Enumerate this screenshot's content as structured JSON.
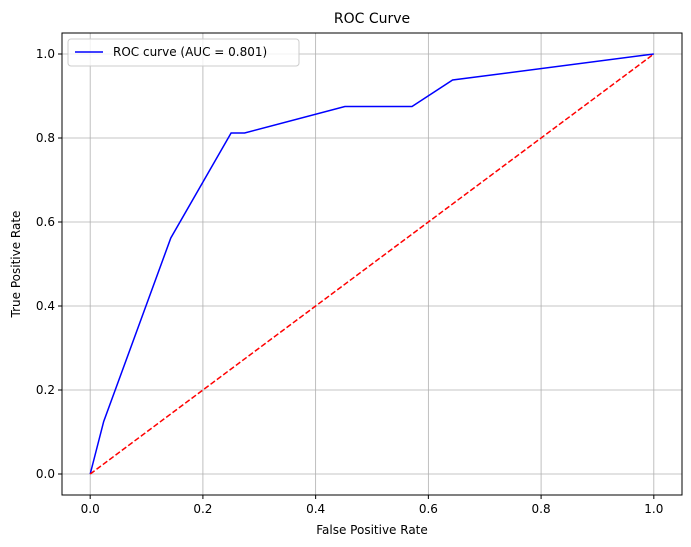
{
  "chart_data": {
    "type": "line",
    "title": "ROC Curve",
    "xlabel": "False Positive Rate",
    "ylabel": "True Positive Rate",
    "xlim": [
      -0.05,
      1.05
    ],
    "ylim": [
      -0.05,
      1.05
    ],
    "grid": true,
    "legend_position": "upper-left",
    "x_ticks": [
      "0.0",
      "0.2",
      "0.4",
      "0.6",
      "0.8",
      "1.0"
    ],
    "y_ticks": [
      "0.0",
      "0.2",
      "0.4",
      "0.6",
      "0.8",
      "1.0"
    ],
    "series": [
      {
        "name": "ROC curve (AUC = 0.801)",
        "color": "#0000ff",
        "style": "solid",
        "x": [
          0.0,
          0.024,
          0.143,
          0.25,
          0.274,
          0.452,
          0.571,
          0.643,
          1.0
        ],
        "y": [
          0.0,
          0.125,
          0.562,
          0.812,
          0.812,
          0.875,
          0.875,
          0.938,
          1.0
        ]
      },
      {
        "color": "#ff0000",
        "style": "dashed",
        "x": [
          0.0,
          1.0
        ],
        "y": [
          0.0,
          1.0
        ]
      }
    ]
  }
}
